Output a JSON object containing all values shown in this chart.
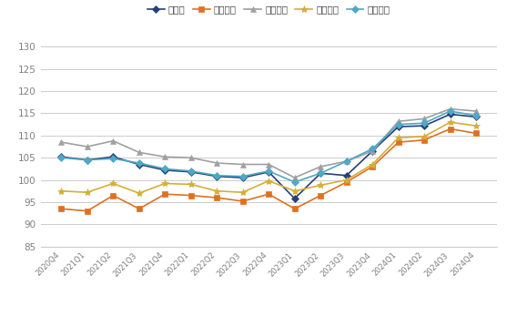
{
  "x_labels": [
    "2020Q4",
    "2021Q1",
    "2021Q2",
    "2021Q3",
    "2021Q4",
    "2022Q1",
    "2022Q2",
    "2022Q3",
    "2022Q4",
    "2023Q1",
    "2023Q2",
    "2023Q3",
    "2023Q4",
    "2024Q1",
    "2024Q2",
    "2024Q3",
    "2024Q4"
  ],
  "series": {
    "总指数": [
      105.2,
      104.5,
      105.2,
      103.5,
      102.2,
      101.8,
      100.8,
      100.5,
      101.8,
      95.8,
      101.5,
      101.0,
      106.5,
      112.0,
      112.2,
      114.8,
      114.2
    ],
    "消费指数": [
      93.5,
      93.0,
      96.5,
      93.5,
      96.8,
      96.5,
      96.0,
      95.2,
      96.8,
      93.5,
      96.5,
      99.5,
      103.0,
      108.5,
      109.0,
      111.5,
      110.5
    ],
    "旅游指数": [
      108.5,
      107.5,
      108.8,
      106.2,
      105.2,
      105.0,
      103.8,
      103.5,
      103.5,
      100.5,
      103.0,
      104.2,
      106.5,
      113.2,
      113.8,
      116.0,
      115.5
    ],
    "金融指数": [
      97.5,
      97.2,
      99.2,
      97.0,
      99.2,
      99.0,
      97.5,
      97.2,
      99.8,
      97.5,
      98.8,
      100.0,
      103.5,
      109.5,
      109.8,
      113.0,
      112.2
    ],
    "健康指数": [
      105.0,
      104.5,
      104.8,
      103.8,
      102.5,
      102.0,
      101.0,
      100.8,
      102.0,
      99.5,
      101.5,
      104.2,
      107.0,
      112.5,
      112.8,
      115.5,
      114.5
    ]
  },
  "colors": {
    "总指数": "#253F7A",
    "消费指数": "#E07020",
    "旅游指数": "#A0A0A0",
    "金融指数": "#D4AF37",
    "健康指数": "#4FA8C5"
  },
  "markers": {
    "总指数": "D",
    "消费指数": "s",
    "旅游指数": "^",
    "金融指数": "*",
    "健康指数": "D"
  },
  "marker_sizes": {
    "总指数": 4,
    "消费指数": 4,
    "旅游指数": 4,
    "金融指数": 6,
    "健康指数": 4
  },
  "ylim": [
    85,
    132
  ],
  "yticks": [
    85,
    90,
    95,
    100,
    105,
    110,
    115,
    120,
    125,
    130
  ],
  "grid_color": "#CCCCCC",
  "bg_color": "#FFFFFF",
  "legend_order": [
    "总指数",
    "消费指数",
    "旅游指数",
    "金融指数",
    "健康指数"
  ],
  "tick_color": "#808080",
  "spine_color": "#CCCCCC"
}
